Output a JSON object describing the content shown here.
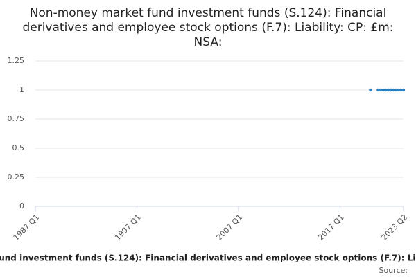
{
  "chart_data": {
    "type": "scatter",
    "title": "Non-money market fund investment funds (S.124): Financial derivatives and employee stock options (F.7): Liability: CP: £m: NSA:",
    "x": [
      "2020 Q1",
      "2020 Q4",
      "2021 Q1",
      "2021 Q2",
      "2021 Q3",
      "2021 Q4",
      "2022 Q1",
      "2022 Q2",
      "2022 Q3",
      "2022 Q4",
      "2023 Q1",
      "2023 Q2"
    ],
    "series": [
      {
        "name": "Non-money market fund investment funds (S.124): Financial derivatives and employee stock options (F.7): Liability: CP: £m: NSA:",
        "color": "#2a7fc1",
        "values": [
          1,
          1,
          1,
          1,
          1,
          1,
          1,
          1,
          1,
          1,
          1,
          1
        ]
      }
    ],
    "xlim": [
      "1987 Q1",
      "2023 Q2"
    ],
    "xticks": [
      "1987 Q1",
      "1997 Q1",
      "2007 Q1",
      "2017 Q1",
      "2023 Q2"
    ],
    "ylim": [
      0,
      1.25
    ],
    "yticks": [
      0,
      0.25,
      0.5,
      0.75,
      1,
      1.25
    ],
    "grid": true,
    "source": "Source:"
  }
}
